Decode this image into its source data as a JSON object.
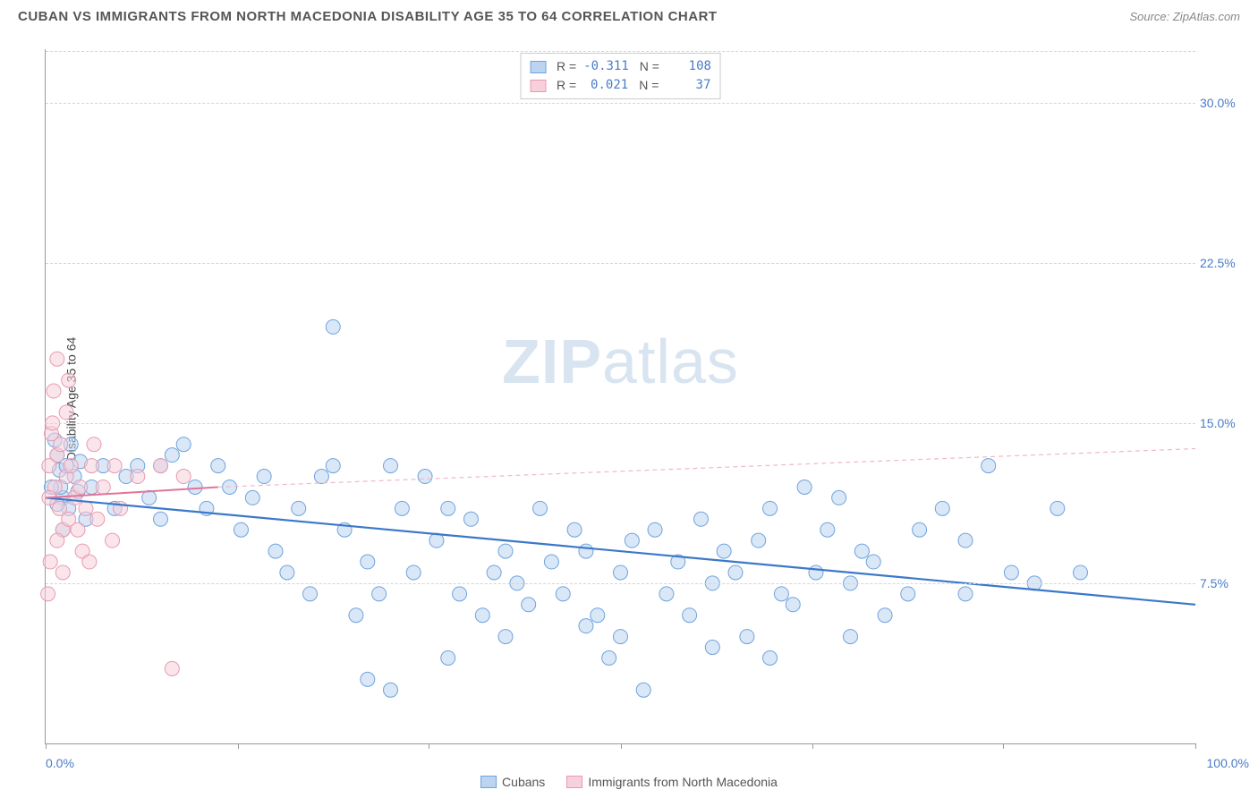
{
  "header": {
    "title": "CUBAN VS IMMIGRANTS FROM NORTH MACEDONIA DISABILITY AGE 35 TO 64 CORRELATION CHART",
    "source": "Source: ZipAtlas.com"
  },
  "chart": {
    "type": "scatter",
    "ylabel": "Disability Age 35 to 64",
    "watermark": {
      "bold": "ZIP",
      "light": "atlas"
    },
    "xlim": [
      0,
      100
    ],
    "ylim": [
      0,
      32.5
    ],
    "x_axis_labels": {
      "left": "0.0%",
      "right": "100.0%"
    },
    "y_ticks": [
      {
        "v": 7.5,
        "label": "7.5%"
      },
      {
        "v": 15.0,
        "label": "15.0%"
      },
      {
        "v": 22.5,
        "label": "22.5%"
      },
      {
        "v": 30.0,
        "label": "30.0%"
      }
    ],
    "x_tick_positions": [
      0,
      16.7,
      33.3,
      50.0,
      66.7,
      83.3,
      100
    ],
    "grid_color": "#d5d5d5",
    "background_color": "#ffffff",
    "marker_radius": 8,
    "marker_opacity": 0.55,
    "series": [
      {
        "name": "Cubans",
        "color_fill": "#bcd4f0",
        "color_stroke": "#6fa3de",
        "R": "-0.311",
        "N": "108",
        "trend": {
          "x1": 0,
          "y1": 11.5,
          "x2": 100,
          "y2": 6.5,
          "stroke": "#3b78c9",
          "width": 2.2,
          "dash": ""
        },
        "points": [
          [
            1,
            13.5
          ],
          [
            1.2,
            12.8
          ],
          [
            1.5,
            11.5
          ],
          [
            0.8,
            14.2
          ],
          [
            1.3,
            12.0
          ],
          [
            1.8,
            13.0
          ],
          [
            2.0,
            11.0
          ],
          [
            2.2,
            14.0
          ],
          [
            1.5,
            10.0
          ],
          [
            2.5,
            12.5
          ],
          [
            3.0,
            13.2
          ],
          [
            0.5,
            12.0
          ],
          [
            1.0,
            11.2
          ],
          [
            2.8,
            11.8
          ],
          [
            3.5,
            10.5
          ],
          [
            4,
            12
          ],
          [
            5,
            13
          ],
          [
            6,
            11
          ],
          [
            7,
            12.5
          ],
          [
            8,
            13
          ],
          [
            9,
            11.5
          ],
          [
            10,
            10.5
          ],
          [
            10,
            13
          ],
          [
            11,
            13.5
          ],
          [
            12,
            14
          ],
          [
            13,
            12
          ],
          [
            14,
            11
          ],
          [
            15,
            13
          ],
          [
            16,
            12
          ],
          [
            17,
            10
          ],
          [
            18,
            11.5
          ],
          [
            19,
            12.5
          ],
          [
            20,
            9
          ],
          [
            21,
            8
          ],
          [
            22,
            11
          ],
          [
            23,
            7
          ],
          [
            24,
            12.5
          ],
          [
            25,
            19.5
          ],
          [
            25,
            13
          ],
          [
            26,
            10
          ],
          [
            27,
            6
          ],
          [
            28,
            8.5
          ],
          [
            29,
            7
          ],
          [
            30,
            13
          ],
          [
            28,
            3
          ],
          [
            30,
            2.5
          ],
          [
            31,
            11
          ],
          [
            32,
            8
          ],
          [
            33,
            12.5
          ],
          [
            34,
            9.5
          ],
          [
            35,
            11
          ],
          [
            35,
            4
          ],
          [
            36,
            7
          ],
          [
            37,
            10.5
          ],
          [
            38,
            6
          ],
          [
            39,
            8
          ],
          [
            40,
            9
          ],
          [
            41,
            7.5
          ],
          [
            40,
            5
          ],
          [
            42,
            6.5
          ],
          [
            43,
            11
          ],
          [
            44,
            8.5
          ],
          [
            45,
            7
          ],
          [
            46,
            10
          ],
          [
            47,
            9
          ],
          [
            47,
            5.5
          ],
          [
            48,
            6
          ],
          [
            49,
            4
          ],
          [
            50,
            8
          ],
          [
            51,
            9.5
          ],
          [
            52,
            2.5
          ],
          [
            53,
            10
          ],
          [
            50,
            5
          ],
          [
            54,
            7
          ],
          [
            55,
            8.5
          ],
          [
            56,
            6
          ],
          [
            57,
            10.5
          ],
          [
            58,
            7.5
          ],
          [
            59,
            9
          ],
          [
            58,
            4.5
          ],
          [
            60,
            8
          ],
          [
            61,
            5
          ],
          [
            62,
            9.5
          ],
          [
            63,
            11
          ],
          [
            64,
            7
          ],
          [
            65,
            6.5
          ],
          [
            63,
            4
          ],
          [
            66,
            12
          ],
          [
            67,
            8
          ],
          [
            68,
            10
          ],
          [
            69,
            11.5
          ],
          [
            70,
            7.5
          ],
          [
            71,
            9
          ],
          [
            70,
            5
          ],
          [
            72,
            8.5
          ],
          [
            73,
            6
          ],
          [
            75,
            7
          ],
          [
            76,
            10
          ],
          [
            78,
            11
          ],
          [
            80,
            9.5
          ],
          [
            80,
            7
          ],
          [
            82,
            13
          ],
          [
            84,
            8
          ],
          [
            86,
            7.5
          ],
          [
            88,
            11
          ],
          [
            90,
            8
          ]
        ]
      },
      {
        "name": "Immigrants from North Macedonia",
        "color_fill": "#f6d0da",
        "color_stroke": "#e89ab0",
        "R": "0.021",
        "N": "37",
        "trend": {
          "x1": 0,
          "y1": 11.5,
          "x2": 15,
          "y2": 12.0,
          "stroke": "#e27498",
          "width": 2.0,
          "dash": ""
        },
        "extrapolate": {
          "x1": 15,
          "y1": 12.0,
          "x2": 100,
          "y2": 13.8,
          "stroke": "#f0b8c6",
          "width": 1.2,
          "dash": "5,4"
        },
        "points": [
          [
            0.5,
            14.5
          ],
          [
            0.8,
            12
          ],
          [
            1.0,
            13.5
          ],
          [
            1.2,
            11
          ],
          [
            1.5,
            10
          ],
          [
            0.3,
            13
          ],
          [
            0.6,
            15
          ],
          [
            1.0,
            9.5
          ],
          [
            1.3,
            14
          ],
          [
            1.8,
            12.5
          ],
          [
            2.0,
            10.5
          ],
          [
            2.2,
            13
          ],
          [
            2.5,
            11.5
          ],
          [
            0.4,
            8.5
          ],
          [
            0.7,
            16.5
          ],
          [
            1.5,
            8
          ],
          [
            2.8,
            10
          ],
          [
            3.0,
            12
          ],
          [
            3.2,
            9
          ],
          [
            3.5,
            11
          ],
          [
            4.0,
            13
          ],
          [
            4.5,
            10.5
          ],
          [
            5.0,
            12
          ],
          [
            5.8,
            9.5
          ],
          [
            6.0,
            13
          ],
          [
            0.2,
            7
          ],
          [
            1.0,
            18
          ],
          [
            1.8,
            15.5
          ],
          [
            0.3,
            11.5
          ],
          [
            2.0,
            17
          ],
          [
            3.8,
            8.5
          ],
          [
            4.2,
            14
          ],
          [
            6.5,
            11
          ],
          [
            8,
            12.5
          ],
          [
            10,
            13
          ],
          [
            11,
            3.5
          ],
          [
            12,
            12.5
          ]
        ]
      }
    ],
    "legend_bottom": [
      {
        "label": "Cubans",
        "fill": "#bcd4f0",
        "stroke": "#6fa3de"
      },
      {
        "label": "Immigrants from North Macedonia",
        "fill": "#f6d0da",
        "stroke": "#e89ab0"
      }
    ]
  }
}
